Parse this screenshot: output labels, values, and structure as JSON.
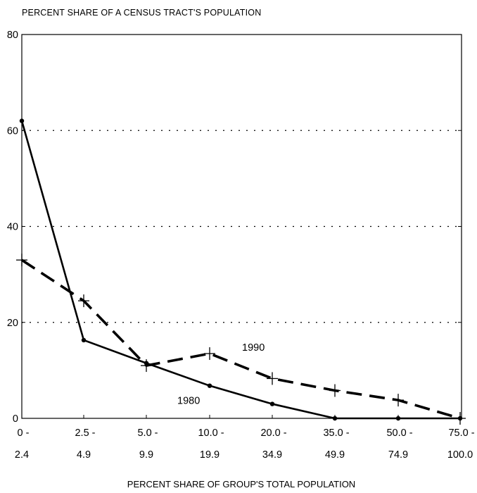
{
  "chart_data": {
    "type": "line",
    "title": "PERCENT SHARE OF A CENSUS TRACT'S POPULATION",
    "xlabel": "PERCENT SHARE OF GROUP'S TOTAL POPULATION",
    "ylabel": "",
    "categories": [
      [
        "0 -",
        "2.4"
      ],
      [
        "2.5 -",
        "4.9"
      ],
      [
        "5.0 -",
        "9.9"
      ],
      [
        "10.0 -",
        "19.9"
      ],
      [
        "20.0 -",
        "34.9"
      ],
      [
        "35.0 -",
        "49.9"
      ],
      [
        "50.0 -",
        "74.9"
      ],
      [
        "75.0 -",
        "100.0"
      ]
    ],
    "ylim": [
      0,
      80
    ],
    "yticks": [
      "0",
      "20",
      "40",
      "60",
      "80"
    ],
    "grid": "dotted horizontal at 20, 40, 60",
    "series": [
      {
        "name": "1980",
        "style": "solid",
        "marker": "dot",
        "color": "#000000",
        "values": [
          62,
          16.3,
          11.5,
          6.8,
          3.0,
          0,
          0,
          0
        ]
      },
      {
        "name": "1990",
        "style": "dashed",
        "marker": "plus",
        "color": "#000000",
        "values": [
          33,
          24.5,
          11.0,
          13.5,
          8.3,
          5.8,
          3.8,
          0
        ]
      }
    ]
  }
}
